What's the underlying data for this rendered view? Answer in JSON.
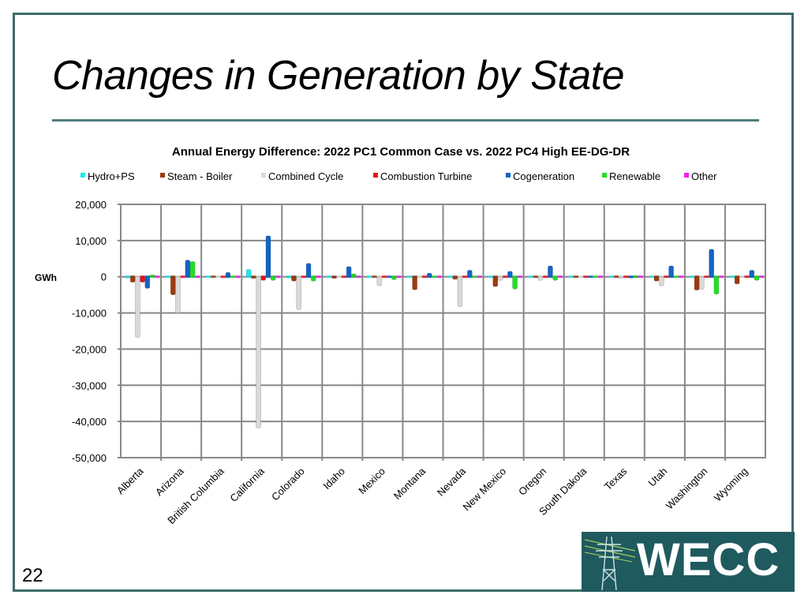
{
  "slide": {
    "title": "Changes in Generation by State",
    "page_number": "22",
    "logo_text": "WECC",
    "colors": {
      "frame": "#3e6b6b",
      "logo_bg": "#1f5a5f"
    }
  },
  "chart_data": {
    "type": "bar",
    "title": "Annual Energy Difference: 2022 PC1 Common Case vs. 2022 PC4 High EE-DG-DR",
    "xlabel": "",
    "ylabel": "GWh",
    "ylim": [
      -50000,
      20000
    ],
    "yticks": [
      20000,
      10000,
      0,
      -10000,
      -20000,
      -30000,
      -40000,
      -50000
    ],
    "ytick_labels": [
      "20,000",
      "10,000",
      "0",
      "-10,000",
      "-20,000",
      "-30,000",
      "-40,000",
      "-50,000"
    ],
    "grid": true,
    "legend_position": "top",
    "categories": [
      "Alberta",
      "Arizona",
      "British Columbia",
      "California",
      "Colorado",
      "Idaho",
      "Mexico",
      "Montana",
      "Nevada",
      "New Mexico",
      "Oregon",
      "South Dakota",
      "Texas",
      "Utah",
      "Washington",
      "Wyoming"
    ],
    "series": [
      {
        "name": "Hydro+PS",
        "color": "#1ee8f0",
        "values": [
          100,
          0,
          0,
          2000,
          100,
          0,
          0,
          0,
          0,
          0,
          0,
          0,
          0,
          0,
          0,
          0
        ]
      },
      {
        "name": "Steam - Boiler",
        "color": "#9c3a10",
        "values": [
          -1500,
          -5000,
          0,
          -300,
          -1200,
          -300,
          0,
          -3600,
          -700,
          -2700,
          0,
          0,
          0,
          -1200,
          -3700,
          -2000
        ]
      },
      {
        "name": "Combined Cycle",
        "color": "#d9d9d9",
        "values": [
          -16800,
          -10000,
          0,
          -41800,
          -9100,
          0,
          -2500,
          0,
          -8300,
          -1000,
          -1000,
          0,
          -300,
          -2500,
          -3500,
          0
        ]
      },
      {
        "name": "Combustion Turbine",
        "color": "#e8121c",
        "values": [
          -1500,
          0,
          0,
          -1000,
          0,
          0,
          0,
          0,
          0,
          0,
          0,
          0,
          0,
          0,
          0,
          0
        ]
      },
      {
        "name": "Cogeneration",
        "color": "#1464c8",
        "values": [
          -3200,
          4600,
          1200,
          11300,
          3700,
          2800,
          0,
          1000,
          1800,
          1500,
          3000,
          0,
          100,
          3000,
          7600,
          1800
        ]
      },
      {
        "name": "Renewable",
        "color": "#22e022",
        "values": [
          500,
          4200,
          0,
          -1000,
          -1200,
          800,
          -800,
          0,
          0,
          -3400,
          -1000,
          0,
          300,
          0,
          -4800,
          -1000
        ]
      },
      {
        "name": "Other",
        "color": "#f01ef0",
        "values": [
          0,
          0,
          0,
          0,
          0,
          0,
          0,
          0,
          0,
          0,
          0,
          0,
          0,
          0,
          0,
          0
        ]
      }
    ]
  }
}
